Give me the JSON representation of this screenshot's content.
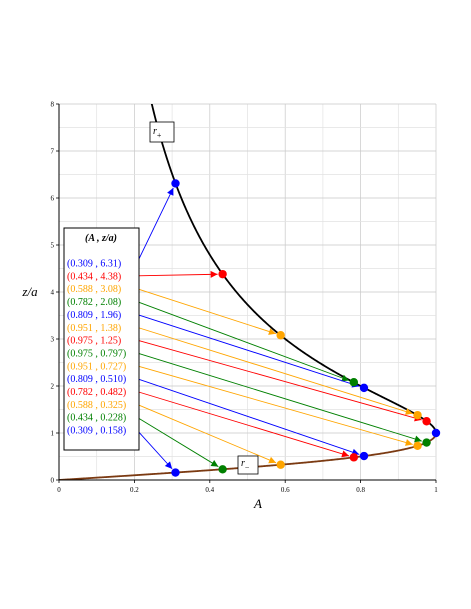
{
  "chart_data": {
    "type": "line",
    "xlabel": "A",
    "ylabel": "z/a",
    "xlim": [
      0,
      1
    ],
    "ylim": [
      0,
      8
    ],
    "x_ticks": [
      "0",
      "0.2",
      "0.4",
      "0.6",
      "0.8",
      "1"
    ],
    "y_ticks": [
      "0",
      "1",
      "2",
      "3",
      "4",
      "5",
      "6",
      "7",
      "8"
    ],
    "grid": true,
    "curves": [
      {
        "label_main": "r",
        "label_sub": "+",
        "color": "#000000",
        "branch": "upper"
      },
      {
        "label_main": "r",
        "label_sub": "−",
        "color": "#7b3a12",
        "branch": "lower"
      }
    ],
    "legend": {
      "title": "(A , z/a)",
      "entries": [
        {
          "label": "(0.309 , 6.31)",
          "color": "#0000ff",
          "x": 0.309,
          "y": 6.31
        },
        {
          "label": "(0.434 , 4.38)",
          "color": "#ff0000",
          "x": 0.434,
          "y": 4.38
        },
        {
          "label": "(0.588 , 3.08)",
          "color": "#ffa500",
          "x": 0.588,
          "y": 3.08
        },
        {
          "label": "(0.782 , 2.08)",
          "color": "#008000",
          "x": 0.782,
          "y": 2.08
        },
        {
          "label": "(0.809 , 1.96)",
          "color": "#0000ff",
          "x": 0.809,
          "y": 1.96
        },
        {
          "label": "(0.951 , 1.38)",
          "color": "#ffa500",
          "x": 0.951,
          "y": 1.38
        },
        {
          "label": "(0.975 , 1.25)",
          "color": "#ff0000",
          "x": 0.975,
          "y": 1.25
        },
        {
          "label": "(0.975 , 0.797)",
          "color": "#008000",
          "x": 0.975,
          "y": 0.797
        },
        {
          "label": "(0.951 , 0.727)",
          "color": "#ffa500",
          "x": 0.951,
          "y": 0.727
        },
        {
          "label": "(0.809 , 0.510)",
          "color": "#0000ff",
          "x": 0.809,
          "y": 0.51
        },
        {
          "label": "(0.782 , 0.482)",
          "color": "#ff0000",
          "x": 0.782,
          "y": 0.482
        },
        {
          "label": "(0.588 , 0.325)",
          "color": "#ffa500",
          "x": 0.588,
          "y": 0.325
        },
        {
          "label": "(0.434 , 0.228)",
          "color": "#008000",
          "x": 0.434,
          "y": 0.228
        },
        {
          "label": "(0.309 , 0.158)",
          "color": "#0000ff",
          "x": 0.309,
          "y": 0.158
        }
      ]
    },
    "turning_point": {
      "x": 1.0,
      "y": 1.0,
      "color": "#0000ff"
    }
  }
}
